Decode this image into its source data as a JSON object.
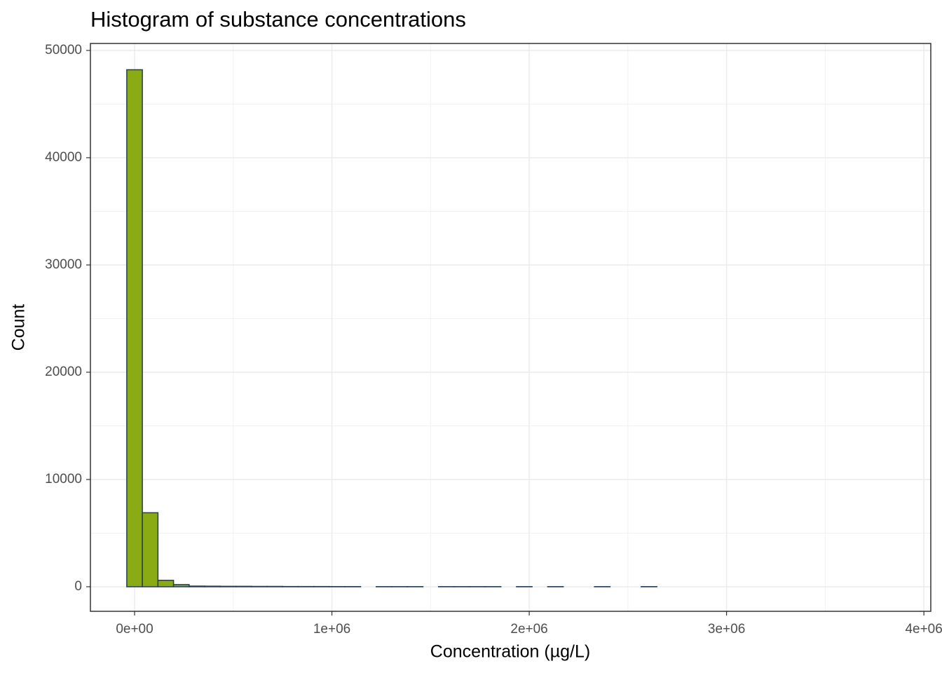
{
  "chart_data": {
    "type": "histogram",
    "title": "Histogram of substance concentrations",
    "x_label": "Concentration (µg/L)",
    "y_label": "Count",
    "bins": [
      -39500,
      39500,
      118500,
      197500,
      276500,
      355500,
      434500,
      513500,
      592500,
      671500,
      750500,
      829500,
      908500,
      987500,
      1066500,
      1145500,
      1224500,
      1303500,
      1382500,
      1461500,
      1540500,
      1619500,
      1698500,
      1777500,
      1856500,
      1935500,
      2014500,
      2093500,
      2172500,
      2251500,
      2330500,
      2409500,
      2488500,
      2567500,
      2646500,
      2725500,
      2804500,
      2883500,
      2962500,
      3041500,
      3120500,
      3199500,
      3278500,
      3357500,
      3436500,
      3515500,
      3594500,
      3673500,
      3752500,
      3831500
    ],
    "counts": [
      48200,
      6900,
      600,
      200,
      60,
      50,
      40,
      40,
      30,
      30,
      20,
      20,
      20,
      15,
      15,
      0,
      10,
      10,
      10,
      0,
      10,
      10,
      10,
      10,
      0,
      10,
      0,
      10,
      0,
      0,
      10,
      0,
      0,
      10,
      0,
      0,
      0,
      0,
      0,
      0,
      0,
      0,
      0,
      0,
      0,
      0,
      0,
      0,
      0
    ],
    "color": "#8aab14",
    "edge_color": "#233d5c",
    "xlim": [
      -223800,
      4035000
    ],
    "xticks": [
      {
        "value": 0,
        "label": "0e+00"
      },
      {
        "value": 1000000,
        "label": "1e+06"
      },
      {
        "value": 2000000,
        "label": "2e+06"
      },
      {
        "value": 3000000,
        "label": "3e+06"
      },
      {
        "value": 4000000,
        "label": "4e+06"
      }
    ],
    "xminorticks": [
      500000,
      1500000,
      2500000,
      3500000
    ],
    "ylim": [
      -2290,
      50650
    ],
    "yticks": [
      0,
      10000,
      20000,
      30000,
      40000,
      50000
    ],
    "yminorticks": [
      5000,
      15000,
      25000,
      35000,
      45000
    ],
    "grid": true
  }
}
